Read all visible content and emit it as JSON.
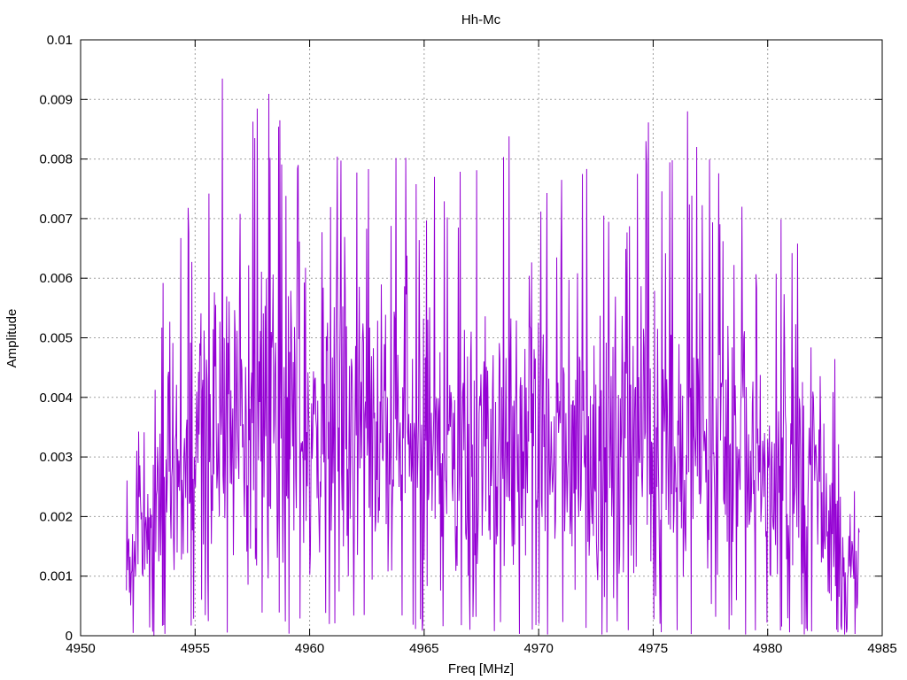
{
  "chart_data": {
    "type": "line",
    "title": "Hh-Mc",
    "xlabel": "Freq [MHz]",
    "ylabel": "Amplitude",
    "xlim": [
      4950,
      4985
    ],
    "ylim": [
      0,
      0.01
    ],
    "xticks": [
      4950,
      4955,
      4960,
      4965,
      4970,
      4975,
      4980,
      4985
    ],
    "yticks": [
      0,
      0.001,
      0.002,
      0.003,
      0.004,
      0.005,
      0.006,
      0.007,
      0.008,
      0.009,
      0.01
    ],
    "xtick_labels": [
      "4950",
      "4955",
      "4960",
      "4965",
      "4970",
      "4975",
      "4980",
      "4985"
    ],
    "ytick_labels": [
      "0",
      "0.001",
      "0.002",
      "0.003",
      "0.004",
      "0.005",
      "0.006",
      "0.007",
      "0.008",
      "0.009",
      "0.01"
    ],
    "grid": true,
    "legend": "none",
    "series": [
      {
        "color": "#9400d3",
        "x_range": [
          4952,
          4984
        ],
        "points": 1200,
        "envelope_x": [
          4952,
          4953,
          4954,
          4955,
          4956,
          4958,
          4960,
          4962,
          4964,
          4966,
          4968,
          4970,
          4972,
          4974,
          4976,
          4978,
          4980,
          4982,
          4983,
          4984
        ],
        "envelope_y": [
          0.0015,
          0.0025,
          0.0035,
          0.0045,
          0.005,
          0.0052,
          0.005,
          0.0047,
          0.0047,
          0.0045,
          0.0047,
          0.0043,
          0.0045,
          0.0047,
          0.005,
          0.0045,
          0.004,
          0.0037,
          0.0025,
          0.0012
        ],
        "peaks": [
          {
            "x": 4956.2,
            "y": 0.00935
          },
          {
            "x": 4958.7,
            "y": 0.00865
          },
          {
            "x": 4957.6,
            "y": 0.00835
          },
          {
            "x": 4968.7,
            "y": 0.00838
          },
          {
            "x": 4976.5,
            "y": 0.0088
          },
          {
            "x": 4961.2,
            "y": 0.00804
          },
          {
            "x": 4964.2,
            "y": 0.00802
          },
          {
            "x": 4959.5,
            "y": 0.0079
          },
          {
            "x": 4954.7,
            "y": 0.00718
          },
          {
            "x": 4955.6,
            "y": 0.00742
          },
          {
            "x": 4974.3,
            "y": 0.00775
          },
          {
            "x": 4971.0,
            "y": 0.00765
          },
          {
            "x": 4981.3,
            "y": 0.00658
          },
          {
            "x": 4953.6,
            "y": 0.00592
          },
          {
            "x": 4966.5,
            "y": 0.00685
          }
        ],
        "troughs": [
          {
            "x": 4953.2,
            "y": 0.0
          },
          {
            "x": 4967.0,
            "y": 0.0001
          },
          {
            "x": 4975.3,
            "y": 0.0002
          },
          {
            "x": 4983.0,
            "y": 0.0001
          }
        ]
      }
    ]
  }
}
